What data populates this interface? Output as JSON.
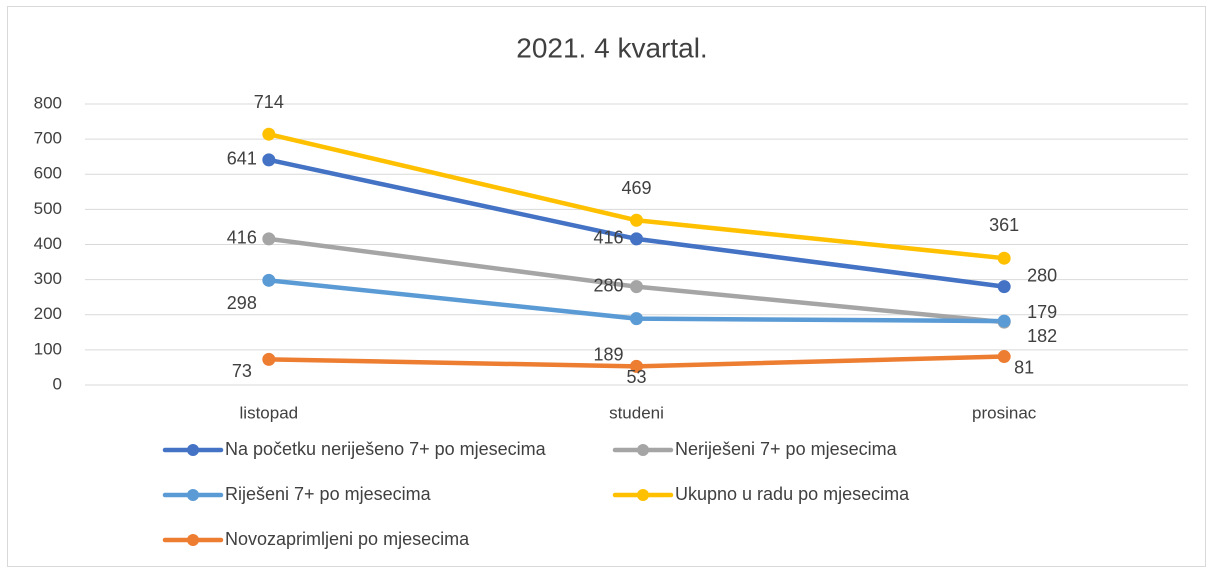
{
  "chart_data": {
    "type": "line",
    "title": "2021. 4 kvartal.",
    "categories": [
      "listopad",
      "studeni",
      "prosinac"
    ],
    "series": [
      {
        "name": "Na početku neriješeno 7+ po mjesecima",
        "color": "#4472c4",
        "values": [
          641,
          416,
          280
        ]
      },
      {
        "name": "Neriješeni 7+ po mjesecima",
        "color": "#a5a5a5",
        "values": [
          416,
          280,
          179
        ]
      },
      {
        "name": "Riješeni 7+ po mjesecima",
        "color": "#5b9bd5",
        "values": [
          298,
          189,
          182
        ]
      },
      {
        "name": "Ukupno u radu po mjesecima",
        "color": "#ffc000",
        "values": [
          714,
          469,
          361
        ]
      },
      {
        "name": "Novozaprimljeni po mjesecima",
        "color": "#ed7d31",
        "values": [
          73,
          53,
          81
        ]
      }
    ],
    "ylim": [
      0,
      800
    ],
    "yticks": [
      0,
      100,
      200,
      300,
      400,
      500,
      600,
      700,
      800
    ],
    "grid": true,
    "legend": "bottom"
  }
}
